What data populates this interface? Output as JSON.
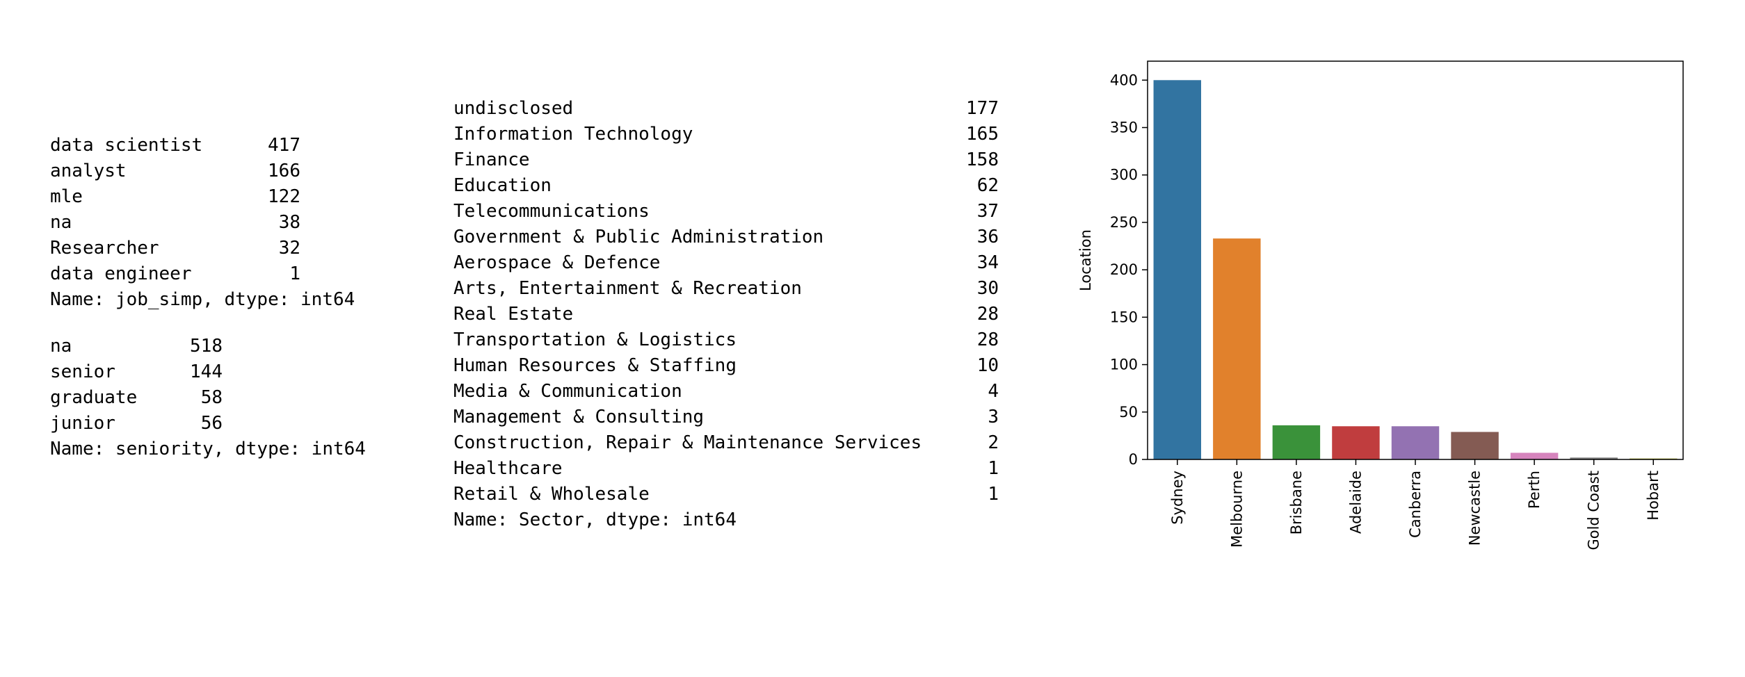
{
  "job_simp": {
    "rows": [
      {
        "label": "data scientist",
        "value": "417"
      },
      {
        "label": "analyst",
        "value": "166"
      },
      {
        "label": "mle",
        "value": "122"
      },
      {
        "label": "na",
        "value": "38"
      },
      {
        "label": "Researcher",
        "value": "32"
      },
      {
        "label": "data engineer",
        "value": "1"
      }
    ],
    "footer": "Name: job_simp, dtype: int64"
  },
  "seniority": {
    "rows": [
      {
        "label": "na",
        "value": "518"
      },
      {
        "label": "senior",
        "value": "144"
      },
      {
        "label": "graduate",
        "value": "58"
      },
      {
        "label": "junior",
        "value": "56"
      }
    ],
    "footer": "Name: seniority, dtype: int64"
  },
  "sector": {
    "rows": [
      {
        "label": "undisclosed",
        "value": "177"
      },
      {
        "label": "Information Technology",
        "value": "165"
      },
      {
        "label": "Finance",
        "value": "158"
      },
      {
        "label": "Education",
        "value": "62"
      },
      {
        "label": "Telecommunications",
        "value": "37"
      },
      {
        "label": "Government & Public Administration",
        "value": "36"
      },
      {
        "label": "Aerospace & Defence",
        "value": "34"
      },
      {
        "label": "Arts, Entertainment & Recreation",
        "value": "30"
      },
      {
        "label": "Real Estate",
        "value": "28"
      },
      {
        "label": "Transportation & Logistics",
        "value": "28"
      },
      {
        "label": "Human Resources & Staffing",
        "value": "10"
      },
      {
        "label": "Media & Communication",
        "value": "4"
      },
      {
        "label": "Management & Consulting",
        "value": "3"
      },
      {
        "label": "Construction, Repair & Maintenance Services",
        "value": "2"
      },
      {
        "label": "Healthcare",
        "value": "1"
      },
      {
        "label": "Retail & Wholesale",
        "value": "1"
      }
    ],
    "footer": "Name: Sector, dtype: int64"
  },
  "chart_data": {
    "type": "bar",
    "title": "",
    "xlabel": "",
    "ylabel": "Location",
    "categories": [
      "Sydney",
      "Melbourne",
      "Brisbane",
      "Adelaide",
      "Canberra",
      "Newcastle",
      "Perth",
      "Gold Coast",
      "Hobart"
    ],
    "values": [
      400,
      233,
      36,
      35,
      35,
      29,
      7,
      2,
      1
    ],
    "colors": [
      "#3274a1",
      "#e1812c",
      "#3a923a",
      "#c03d3e",
      "#9372b2",
      "#845b53",
      "#d684bd",
      "#7f7f7f",
      "#a9aa35"
    ],
    "ylim": [
      0,
      420
    ],
    "yticks": [
      0,
      50,
      100,
      150,
      200,
      250,
      300,
      350,
      400
    ],
    "grid": false,
    "legend": "none"
  }
}
